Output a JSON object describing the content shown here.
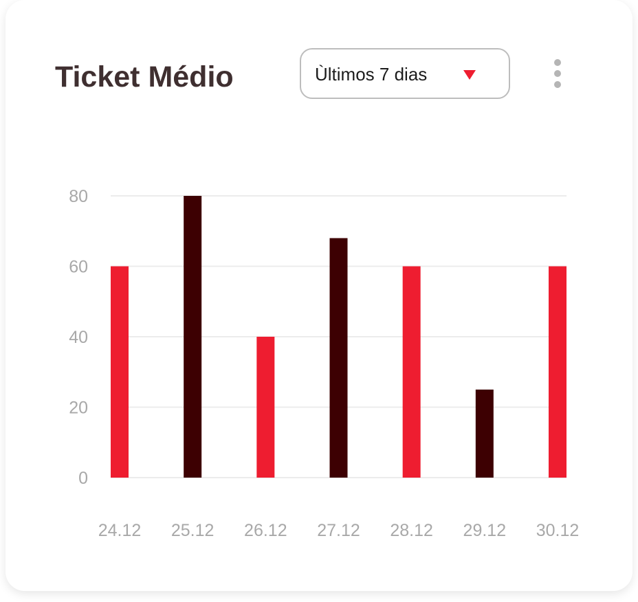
{
  "card": {
    "title": "Ticket Médio",
    "period_dropdown": {
      "selected": "Ùltimos 7 dias",
      "caret_icon": "triangle-down-icon",
      "caret_color": "#ee1d30"
    },
    "more_menu_icon": "more-vertical-icon"
  },
  "chart_data": {
    "type": "bar",
    "categories": [
      "24.12",
      "25.12",
      "26.12",
      "27.12",
      "28.12",
      "29.12",
      "30.12"
    ],
    "values": [
      60,
      80,
      40,
      68,
      60,
      25,
      60
    ],
    "bar_colors": [
      "#ee1d30",
      "#3d0002",
      "#ee1d30",
      "#3d0002",
      "#ee1d30",
      "#3d0002",
      "#ee1d30"
    ],
    "yticks": [
      0,
      20,
      40,
      60,
      80
    ],
    "ylim": [
      0,
      80
    ],
    "grid": true,
    "legend": "none"
  }
}
